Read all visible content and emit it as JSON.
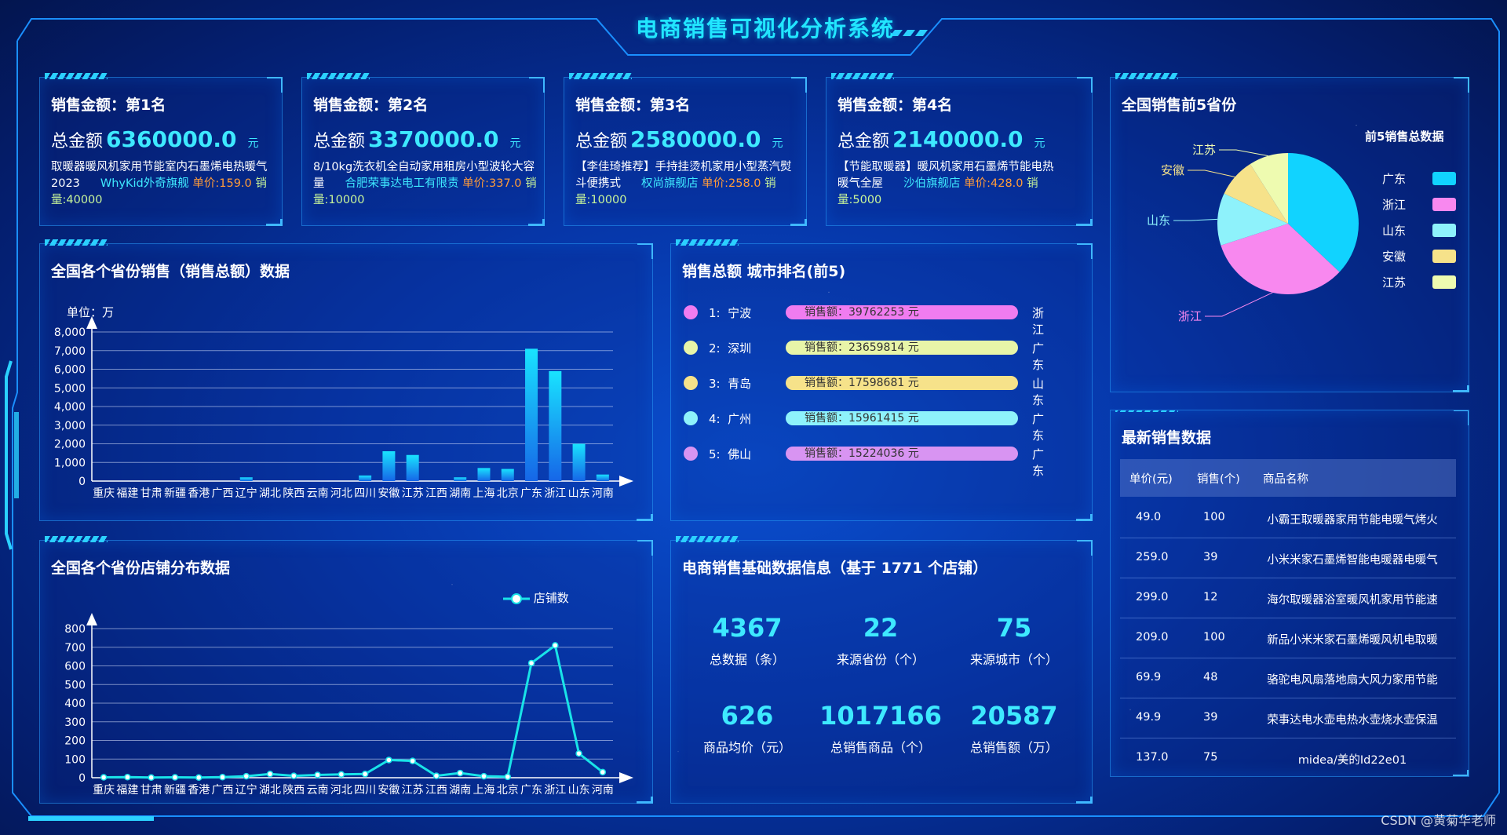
{
  "header": {
    "title": "电商销售可视化分析系统"
  },
  "rank_cards": [
    {
      "title": "销售金额：第1名",
      "total_label": "总金额",
      "amount": "6360000.0",
      "unit": "元",
      "name": "取暖器暖风机家用节能室内石墨烯电热暖气2023",
      "store": "WhyKid外奇旗舰",
      "price_label": "单价:159.0",
      "sales_label": "销量:40000"
    },
    {
      "title": "销售金额：第2名",
      "total_label": "总金额",
      "amount": "3370000.0",
      "unit": "元",
      "name": "8/10kg洗衣机全自动家用租房小型波轮大容量",
      "store": "合肥荣事达电工有限责",
      "price_label": "单价:337.0",
      "sales_label": "销量:10000"
    },
    {
      "title": "销售金额：第3名",
      "total_label": "总金额",
      "amount": "2580000.0",
      "unit": "元",
      "name": "【李佳琦推荐】手持挂烫机家用小型蒸汽熨斗便携式",
      "store": "权尚旗舰店",
      "price_label": "单价:258.0",
      "sales_label": "销量:10000"
    },
    {
      "title": "销售金额：第4名",
      "total_label": "总金额",
      "amount": "2140000.0",
      "unit": "元",
      "name": "【节能取暖器】暖风机家用石墨烯节能电热暖气全屋",
      "store": "沙伯旗舰店",
      "price_label": "单价:428.0",
      "sales_label": "销量:5000"
    }
  ],
  "province_sales": {
    "title": "全国各个省份销售（销售总额）数据",
    "chart_data": {
      "type": "bar",
      "ylabel": "单位：万",
      "ylim": [
        0,
        8000
      ],
      "yticks": [
        "0",
        "1,000",
        "2,000",
        "3,000",
        "4,000",
        "5,000",
        "6,000",
        "7,000",
        "8,000"
      ],
      "categories": [
        "重庆",
        "福建",
        "甘肃",
        "新疆",
        "香港",
        "广西",
        "辽宁",
        "湖北",
        "陕西",
        "云南",
        "河北",
        "四川",
        "安徽",
        "江苏",
        "江西",
        "湖南",
        "上海",
        "北京",
        "广东",
        "浙江",
        "山东",
        "河南"
      ],
      "values": [
        0,
        0,
        0,
        0,
        0,
        0,
        200,
        0,
        0,
        0,
        0,
        300,
        1600,
        1400,
        0,
        200,
        700,
        650,
        7100,
        5900,
        2000,
        350
      ]
    }
  },
  "city_rank": {
    "title": "销售总额 城市排名(前5)",
    "items": [
      {
        "rank": "1:",
        "city": "宁波",
        "label": "销售额：39762253 元",
        "province": "浙江",
        "color": "#f07cf0"
      },
      {
        "rank": "2:",
        "city": "深圳",
        "label": "销售额：23659814 元",
        "province": "广东",
        "color": "#e8f5a8"
      },
      {
        "rank": "3:",
        "city": "青岛",
        "label": "销售额：17598681 元",
        "province": "山东",
        "color": "#f6e28a"
      },
      {
        "rank": "4:",
        "city": "广州",
        "label": "销售额：15961415 元",
        "province": "广东",
        "color": "#8ef2fb"
      },
      {
        "rank": "5:",
        "city": "佛山",
        "label": "销售额：15224036 元",
        "province": "广东",
        "color": "#d894f2"
      }
    ]
  },
  "top5_provinces": {
    "title": "全国销售前5省份",
    "chart_data": {
      "type": "pie",
      "title": "前5销售总数据",
      "categories": [
        "广东",
        "浙江",
        "山东",
        "安徽",
        "江苏"
      ],
      "values": [
        37,
        33,
        12,
        9,
        9
      ],
      "colors": [
        "#11d3ff",
        "#f888ef",
        "#8ef2fb",
        "#f6e28a",
        "#eefbb0"
      ]
    }
  },
  "latest_sales": {
    "title": "最新销售数据",
    "headers": [
      "单价(元)",
      "销售(个)",
      "商品名称"
    ],
    "rows": [
      [
        "49.0",
        "100",
        "小霸王取暖器家用节能电暖气烤火"
      ],
      [
        "259.0",
        "39",
        "小米米家石墨烯智能电暖器电暖气"
      ],
      [
        "299.0",
        "12",
        "海尔取暖器浴室暖风机家用节能速"
      ],
      [
        "209.0",
        "100",
        "新品小米米家石墨烯暖风机电取暖"
      ],
      [
        "69.9",
        "48",
        "骆驼电风扇落地扇大风力家用节能"
      ],
      [
        "49.9",
        "39",
        "荣事达电水壶电热水壶烧水壶保温"
      ],
      [
        "137.0",
        "75",
        "midea/美的Id22e01"
      ]
    ]
  },
  "store_distribution": {
    "title": "全国各个省份店铺分布数据",
    "chart_data": {
      "type": "line",
      "legend": "店铺数",
      "ylim": [
        0,
        800
      ],
      "yticks": [
        "0",
        "100",
        "200",
        "300",
        "400",
        "500",
        "600",
        "700",
        "800"
      ],
      "categories": [
        "重庆",
        "福建",
        "甘肃",
        "新疆",
        "香港",
        "广西",
        "辽宁",
        "湖北",
        "陕西",
        "云南",
        "河北",
        "四川",
        "安徽",
        "江苏",
        "江西",
        "湖南",
        "上海",
        "北京",
        "广东",
        "浙江",
        "山东",
        "河南"
      ],
      "values": [
        2,
        3,
        1,
        2,
        1,
        3,
        8,
        20,
        10,
        15,
        18,
        20,
        95,
        90,
        10,
        25,
        8,
        5,
        615,
        710,
        130,
        30
      ]
    }
  },
  "basic_info": {
    "title": "电商销售基础数据信息（基于 1771 个店铺）",
    "stats": [
      {
        "value": "4367",
        "label": "总数据（条）"
      },
      {
        "value": "22",
        "label": "来源省份（个）"
      },
      {
        "value": "75",
        "label": "来源城市（个）"
      },
      {
        "value": "626",
        "label": "商品均价（元）"
      },
      {
        "value": "1017166",
        "label": "总销售商品（个）"
      },
      {
        "value": "20587",
        "label": "总销售额（万）"
      }
    ]
  },
  "footer": {
    "watermark": "CSDN @黄菊华老师"
  }
}
